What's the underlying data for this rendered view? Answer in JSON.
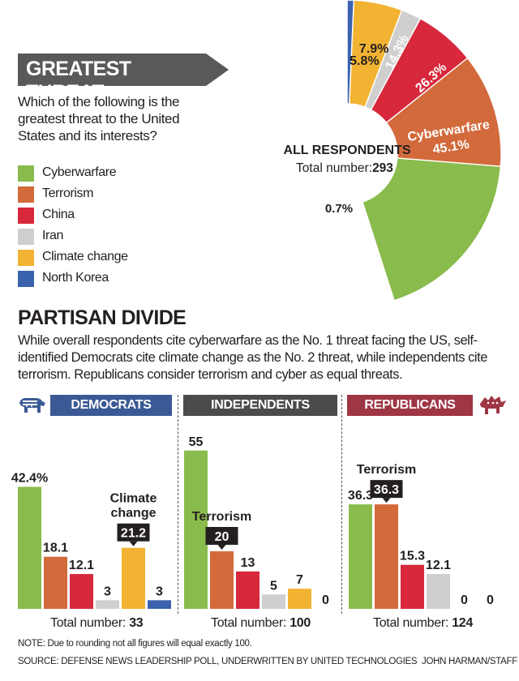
{
  "colors": {
    "cyberwarfare": "#8abb4d",
    "terrorism": "#d36a3c",
    "china": "#d7283c",
    "iran": "#cfcfcf",
    "climate": "#f2b332",
    "north_korea": "#3b62ad",
    "democrats": "#3b5a95",
    "independents": "#4a4b4d",
    "republicans": "#9e3644"
  },
  "header": {
    "title": "GREATEST THREAT",
    "question": "Which of the following is the greatest threat to the United States and its interests?"
  },
  "legend": [
    {
      "label": "Cyberwarfare",
      "color_key": "cyberwarfare"
    },
    {
      "label": "Terrorism",
      "color_key": "terrorism"
    },
    {
      "label": "China",
      "color_key": "china"
    },
    {
      "label": "Iran",
      "color_key": "iran"
    },
    {
      "label": "Climate change",
      "color_key": "climate"
    },
    {
      "label": "North Korea",
      "color_key": "north_korea"
    }
  ],
  "donut": {
    "center_title": "ALL RESPONDENTS",
    "center_total_label": "Total number:",
    "center_total_value": "293"
  },
  "partisan": {
    "title": "PARTISAN DIVIDE",
    "description": "While overall respondents cite cyberwarfare as the No. 1 threat facing the US, self-identified Democrats cite climate change as the No. 2 threat, while independents cite terrorism. Republicans consider terrorism and cyber as equal threats."
  },
  "chart_data": [
    {
      "type": "pie",
      "title": "ALL RESPONDENTS",
      "categories": [
        "Cyberwarfare",
        "Terrorism",
        "China",
        "Iran",
        "Climate change",
        "North Korea"
      ],
      "values": [
        45.1,
        26.3,
        14.3,
        7.9,
        5.8,
        0.7
      ],
      "labels": [
        "45.1%",
        "26.3%",
        "14.3%",
        "7.9%",
        "5.8%",
        "0.7%"
      ],
      "slice_name_label": "Cyberwarfare",
      "total": "293"
    },
    {
      "type": "bar",
      "title": "DEMOCRATS",
      "categories": [
        "Cyberwarfare",
        "Terrorism",
        "China",
        "Iran",
        "Climate change",
        "North Korea"
      ],
      "values": [
        42.4,
        18.1,
        12.1,
        3,
        21.2,
        3
      ],
      "labels": [
        "42.4%",
        "18.1",
        "12.1",
        "3",
        "21.2",
        "3"
      ],
      "callout": {
        "text_line1": "Climate",
        "text_line2": "change",
        "index": 4
      },
      "total_label": "Total number:",
      "total": "33"
    },
    {
      "type": "bar",
      "title": "INDEPENDENTS",
      "categories": [
        "Cyberwarfare",
        "Terrorism",
        "China",
        "Iran",
        "Climate change",
        "North Korea"
      ],
      "values": [
        55,
        20,
        13,
        5,
        7,
        0
      ],
      "labels": [
        "55",
        "20",
        "13",
        "5",
        "7",
        "0"
      ],
      "callout": {
        "text_line1": "Terrorism",
        "text_line2": "",
        "index": 1
      },
      "total_label": "Total number:",
      "total": "100"
    },
    {
      "type": "bar",
      "title": "REPUBLICANS",
      "categories": [
        "Cyberwarfare",
        "Terrorism",
        "China",
        "Iran",
        "Climate change",
        "North Korea"
      ],
      "values": [
        36.3,
        36.3,
        15.3,
        12.1,
        0,
        0
      ],
      "labels": [
        "36.3",
        "36.3",
        "15.3",
        "12.1",
        "0",
        "0"
      ],
      "callout": {
        "text_line1": "Terrorism",
        "text_line2": "",
        "index": 1
      },
      "total_label": "Total number:",
      "total": "124"
    }
  ],
  "footer": {
    "note": "NOTE: Due to rounding not all figures will equal exactly 100.",
    "source": "SOURCE: DEFENSE NEWS LEADERSHIP POLL, UNDERWRITTEN BY UNITED TECHNOLOGIES",
    "credit": "JOHN HARMAN/STAFF"
  },
  "icons": {
    "democrats": "donkey-icon",
    "republicans": "elephant-icon"
  }
}
